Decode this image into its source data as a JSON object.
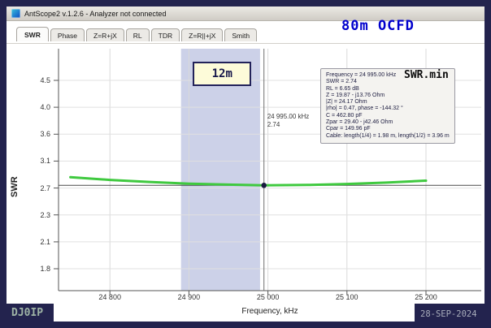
{
  "window": {
    "title": "AntScope2 v.1.2.6 - Analyzer not connected"
  },
  "tabs": [
    {
      "label": "SWR",
      "selected": true
    },
    {
      "label": "Phase",
      "selected": false
    },
    {
      "label": "Z=R+jX",
      "selected": false
    },
    {
      "label": "RL",
      "selected": false
    },
    {
      "label": "TDR",
      "selected": false
    },
    {
      "label": "Z=R||+jX",
      "selected": false
    },
    {
      "label": "Smith",
      "selected": false
    }
  ],
  "annotations": {
    "band_label": "12m",
    "title_overlay": "80m OCFD",
    "swr_min": "SWR.min",
    "callsign": "DJ0IP",
    "date": "28-SEP-2024"
  },
  "cursor": {
    "freq_label": "24 995.00 kHz",
    "swr_label": "2.74"
  },
  "info_box": {
    "lines": [
      "Frequency = 24 995.00 kHz",
      "SWR = 2.74",
      "RL = 6.65 dB",
      "Z = 19.87 - j13.76 Ohm",
      "|Z| = 24.17 Ohm",
      "|rho| = 0.47, phase = -144.32 °",
      "C = 462.80 pF",
      "Zpar = 29.40 - j42.46 Ohm",
      "Cpar = 149.96 pF",
      "Cable: length(1/4) = 1.98 m, length(1/2) = 3.96 m"
    ]
  },
  "chart_data": {
    "type": "line",
    "title": "80m OCFD",
    "xlabel": "Frequency, kHz",
    "ylabel": "SWR",
    "xlim": [
      24735,
      25270
    ],
    "x_ticks": [
      24800,
      24900,
      25000,
      25100,
      25200
    ],
    "x_tick_labels": [
      "24 800",
      "24 900",
      "25 000",
      "25 100",
      "25 200"
    ],
    "y_ticks": [
      4.5,
      4.0,
      3.6,
      3.1,
      2.7,
      2.3,
      2.1,
      1.8
    ],
    "y_tick_labels": [
      "4.5",
      "4.0",
      "3.6",
      "3.1",
      "2.7",
      "2.3",
      "2.1",
      "1.8"
    ],
    "grid": true,
    "band": {
      "label": "12m",
      "from": 24890,
      "to": 24990
    },
    "cursor": {
      "x": 24995,
      "y": 2.74
    },
    "marker": {
      "x": 24995,
      "y": 2.74
    },
    "series": [
      {
        "name": "SWR",
        "color": "#3fc93f",
        "x": [
          24750,
          24800,
          24850,
          24900,
          24950,
          24995,
          25050,
          25100,
          25150,
          25200
        ],
        "y": [
          2.86,
          2.82,
          2.79,
          2.765,
          2.75,
          2.74,
          2.745,
          2.76,
          2.78,
          2.81
        ]
      }
    ]
  }
}
